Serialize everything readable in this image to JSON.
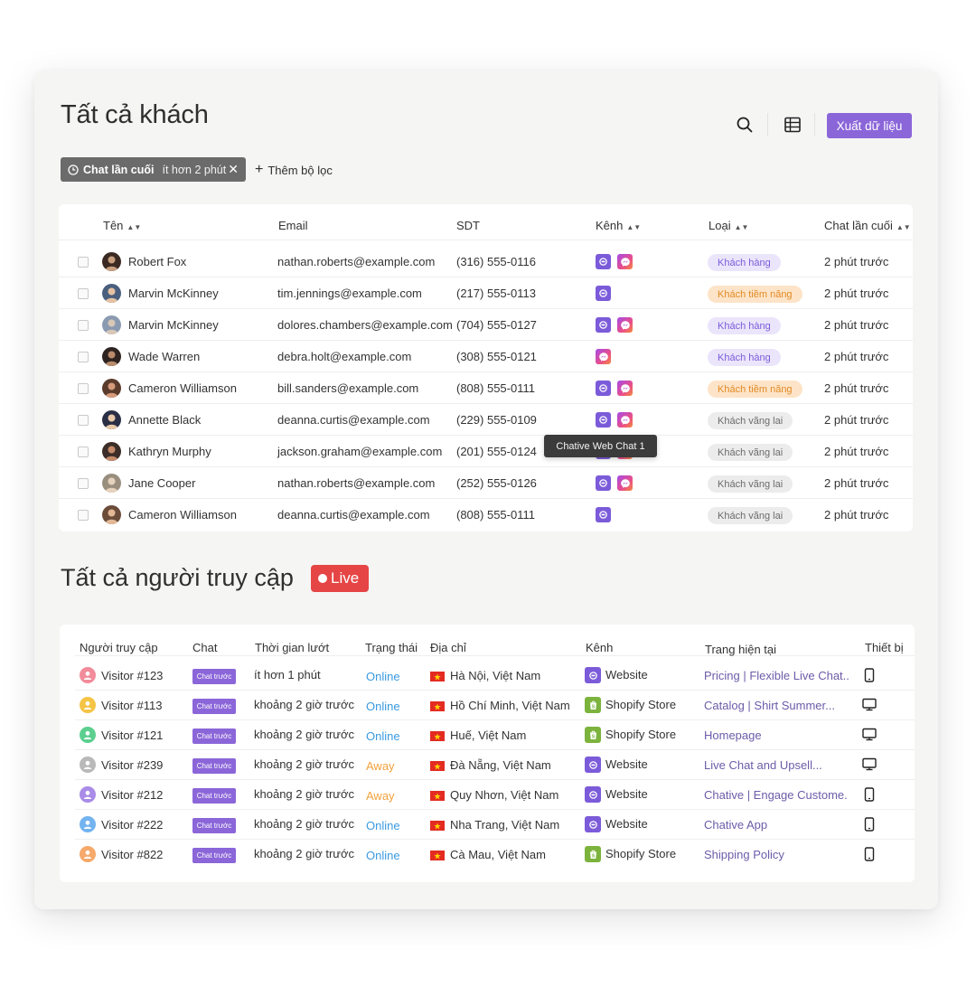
{
  "customers_section": {
    "title": "Tất cả khách",
    "search_icon": "search-icon",
    "table_icon": "table-view-icon",
    "export_label": "Xuất dữ liệu",
    "filter": {
      "name": "Chat lần cuối",
      "value": "ít hơn 2 phút",
      "icon": "clock-icon"
    },
    "add_filter_label": "Thêm bộ lọc",
    "columns": [
      "Tên",
      "Email",
      "SDT",
      "Kênh",
      "Loại",
      "Chat lần cuối"
    ],
    "rows": [
      {
        "name": "Robert Fox",
        "email": "nathan.roberts@example.com",
        "phone": "(316) 555-0116",
        "channels": [
          "web",
          "messenger"
        ],
        "type": "Khách hàng",
        "type_kind": "customer",
        "last_chat": "2 phút trước"
      },
      {
        "name": "Marvin McKinney",
        "email": "tim.jennings@example.com",
        "phone": "(217) 555-0113",
        "channels": [
          "web"
        ],
        "type": "Khách tiềm năng",
        "type_kind": "potential",
        "last_chat": "2 phút trước"
      },
      {
        "name": "Marvin McKinney",
        "email": "dolores.chambers@example.com",
        "phone": "(704) 555-0127",
        "channels": [
          "web",
          "messenger"
        ],
        "type": "Khách hàng",
        "type_kind": "customer",
        "last_chat": "2 phút trước"
      },
      {
        "name": "Wade Warren",
        "email": "debra.holt@example.com",
        "phone": "(308) 555-0121",
        "channels": [
          "messenger"
        ],
        "type": "Khách hàng",
        "type_kind": "customer",
        "last_chat": "2 phút trước"
      },
      {
        "name": "Cameron Williamson",
        "email": "bill.sanders@example.com",
        "phone": "(808) 555-0111",
        "channels": [
          "web",
          "messenger"
        ],
        "type": "Khách tiềm năng",
        "type_kind": "potential",
        "last_chat": "2 phút trước"
      },
      {
        "name": "Annette Black",
        "email": "deanna.curtis@example.com",
        "phone": "(229) 555-0109",
        "channels": [
          "web",
          "messenger"
        ],
        "type": "Khách vãng lai",
        "type_kind": "guest",
        "last_chat": "2 phút trước"
      },
      {
        "name": "Kathryn Murphy",
        "email": "jackson.graham@example.com",
        "phone": "(201) 555-0124",
        "channels": [
          "web",
          "messenger"
        ],
        "type": "Khách vãng lai",
        "type_kind": "guest",
        "last_chat": "2 phút trước"
      },
      {
        "name": "Jane Cooper",
        "email": "nathan.roberts@example.com",
        "phone": "(252) 555-0126",
        "channels": [
          "web",
          "messenger"
        ],
        "type": "Khách vãng lai",
        "type_kind": "guest",
        "last_chat": "2 phút trước"
      },
      {
        "name": "Cameron Williamson",
        "email": "deanna.curtis@example.com",
        "phone": "(808) 555-0111",
        "channels": [
          "web"
        ],
        "type": "Khách vãng lai",
        "type_kind": "guest",
        "last_chat": "2 phút trước"
      }
    ],
    "tooltip": "Chative Web Chat 1"
  },
  "visitors_section": {
    "title": "Tất cả người truy cập",
    "live_label": "Live",
    "columns": [
      "Người truy cập",
      "Chat",
      "Thời gian lướt",
      "Trạng thái",
      "Địa chỉ",
      "Kênh",
      "Trang hiện tại",
      "Thiết bị"
    ],
    "rows": [
      {
        "name": "Visitor #123",
        "avatar_color": "#f28b9a",
        "chat": "Chat trước",
        "time": "ít hơn 1 phút",
        "status": "Online",
        "status_kind": "online",
        "address": "Hà Nội, Việt Nam",
        "channel": "Website",
        "channel_kind": "web",
        "page": "Pricing | Flexible Live Chat...",
        "device": "mobile"
      },
      {
        "name": "Visitor #113",
        "avatar_color": "#f5c445",
        "chat": "Chat trước",
        "time": "khoảng 2 giờ trước",
        "status": "Online",
        "status_kind": "online",
        "address": "Hồ Chí Minh, Việt Nam",
        "channel": "Shopify Store",
        "channel_kind": "shop",
        "page": "Catalog | Shirt Summer...",
        "device": "desktop"
      },
      {
        "name": "Visitor #121",
        "avatar_color": "#5ccf8f",
        "chat": "Chat trước",
        "time": "khoảng 2 giờ trước",
        "status": "Online",
        "status_kind": "online",
        "address": "Huế, Việt Nam",
        "channel": "Shopify Store",
        "channel_kind": "shop",
        "page": "Homepage",
        "device": "desktop"
      },
      {
        "name": "Visitor #239",
        "avatar_color": "#b9b9b9",
        "chat": "Chat trước",
        "time": "khoảng 2 giờ trước",
        "status": "Away",
        "status_kind": "away",
        "address": "Đà Nẵng, Việt Nam",
        "channel": "Website",
        "channel_kind": "web",
        "page": "Live Chat and Upsell...",
        "device": "desktop"
      },
      {
        "name": "Visitor #212",
        "avatar_color": "#a98be8",
        "chat": "Chat trước",
        "time": "khoảng 2 giờ trước",
        "status": "Away",
        "status_kind": "away",
        "address": "Quy Nhơn, Việt Nam",
        "channel": "Website",
        "channel_kind": "web",
        "page": "Chative | Engage Custome...",
        "device": "mobile"
      },
      {
        "name": "Visitor #222",
        "avatar_color": "#73b3f0",
        "chat": "Chat trước",
        "time": "khoảng 2 giờ trước",
        "status": "Online",
        "status_kind": "online",
        "address": "Nha Trang, Việt Nam",
        "channel": "Website",
        "channel_kind": "web",
        "page": "Chative App",
        "device": "mobile"
      },
      {
        "name": "Visitor #822",
        "avatar_color": "#f6a96b",
        "chat": "Chat trước",
        "time": "khoảng 2 giờ trước",
        "status": "Online",
        "status_kind": "online",
        "address": "Cà Mau, Việt Nam",
        "channel": "Shopify Store",
        "channel_kind": "shop",
        "page": "Shipping Policy",
        "device": "mobile"
      }
    ]
  },
  "colors": {
    "accent": "#8b66d9",
    "live": "#e64545",
    "online": "#3a9ae0",
    "away": "#f0a23b"
  }
}
